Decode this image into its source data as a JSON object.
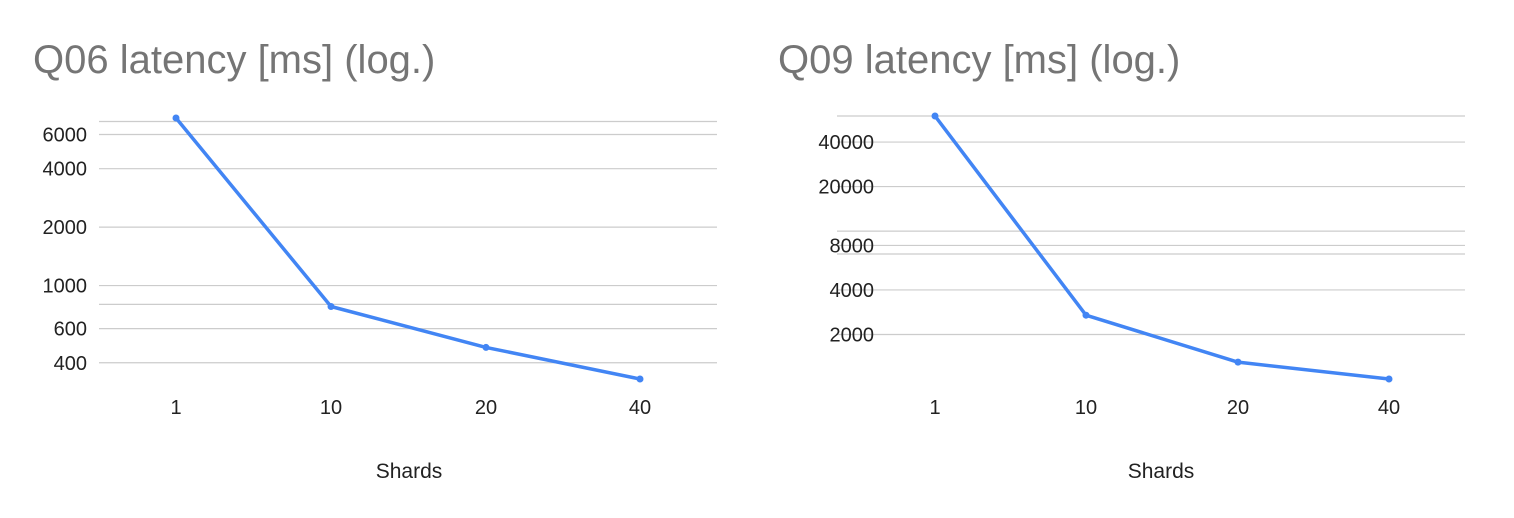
{
  "chart_data": [
    {
      "type": "line",
      "title": "Q06 latency [ms] (log.)",
      "xlabel": "Shards",
      "ylabel": "",
      "yscale": "log",
      "categories": [
        "1",
        "10",
        "20",
        "40"
      ],
      "series": [
        {
          "values": [
            7300,
            780,
            480,
            330
          ]
        }
      ],
      "yticks": [
        400,
        600,
        1000,
        2000,
        4000,
        6000
      ],
      "ytick_labels": [
        "400",
        "600",
        "1000",
        "2000",
        "4000",
        "6000"
      ],
      "ylim": [
        330,
        7300
      ],
      "grid": true,
      "color": "#4285f4"
    },
    {
      "type": "line",
      "title": "Q09 latency [ms] (log.)",
      "xlabel": "Shards",
      "ylabel": "",
      "yscale": "log",
      "categories": [
        "1",
        "10",
        "20",
        "40"
      ],
      "series": [
        {
          "values": [
            60000,
            2700,
            1300,
            1000
          ]
        }
      ],
      "yticks": [
        2000,
        4000,
        8000,
        20000,
        40000
      ],
      "ytick_labels": [
        "2000",
        "4000",
        "8000",
        "20000",
        "40000"
      ],
      "ylim": [
        1000,
        60000
      ],
      "grid": true,
      "color": "#4285f4"
    }
  ]
}
